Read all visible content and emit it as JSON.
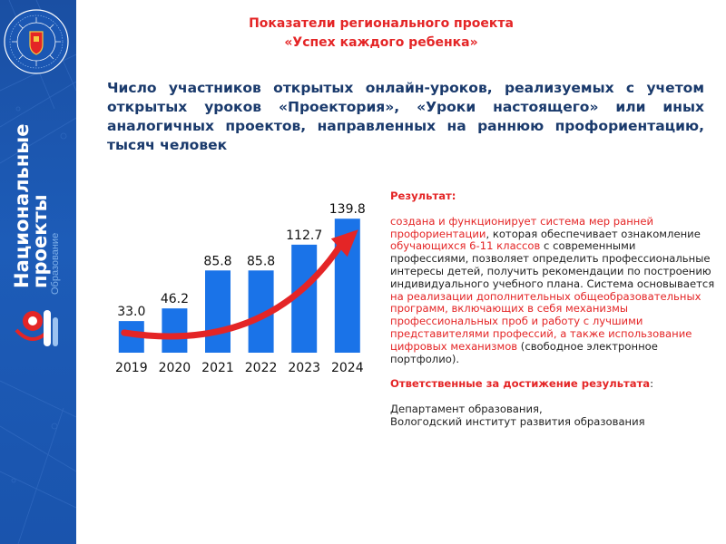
{
  "header": {
    "title_line1": "Показатели регионального проекта",
    "title_line2": "«Успех каждого ребенка»",
    "subtitle": "Число участников открытых онлайн-уроков, реализуемых с учетом открытых уроков «Проектория», «Уроки настоящего» или иных аналогичных проектов, направленных на раннюю профориентацию, тысяч человек"
  },
  "sidebar": {
    "title_line1": "Национальные",
    "title_line2": "проекты",
    "subtitle": "Образование",
    "emblem_icon": "regional-emblem-icon",
    "logo_icon": "national-projects-logo-icon",
    "brand_color": "#1a54ad"
  },
  "chart_data": {
    "type": "bar",
    "categories": [
      "2019",
      "2020",
      "2021",
      "2022",
      "2023",
      "2024"
    ],
    "values": [
      33.0,
      46.2,
      85.8,
      85.8,
      112.7,
      139.8
    ],
    "data_labels": [
      "33.0",
      "46.2",
      "85.8",
      "85.8",
      "112.7",
      "139.8"
    ],
    "bar_color": "#1a73e8",
    "trend_arrow_color": "#e42526",
    "ylim": [
      0,
      140
    ],
    "grid": false
  },
  "panel": {
    "result_heading": "Результат:",
    "p1_a": "создана и функционирует система мер ранней профориентации",
    "p1_b": ", которая обеспечивает ознакомление ",
    "p1_c": "обучающихся 6-11 классов",
    "p1_d": " с современными профессиями, позволяет определить профессиональные интересы детей, получить рекомендации по построению индивидуального учебного плана. Система основывается ",
    "p1_e": "на реализации дополнительных общеобразовательных программ, включающих в себя механизмы профессиональных проб и работу с лучшими представителями профессий, а также использование цифровых механизмов",
    "p1_f": " (свободное электронное портфолио).",
    "responsible_heading": "Ответственные за достижение результата",
    "responsible_colon": ":",
    "org1": "Департамент образования,",
    "org2": "Вологодский институт развития образования",
    "accent_color": "#e42526"
  }
}
